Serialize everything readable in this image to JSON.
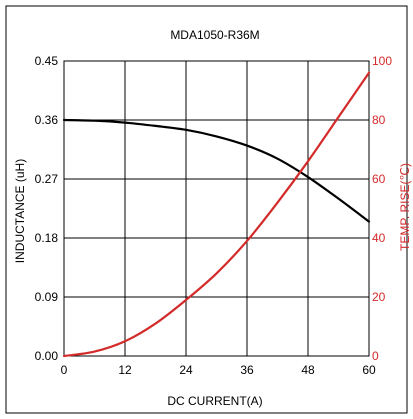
{
  "chart_data": {
    "type": "line",
    "title": "MDA1050-R36M",
    "xlabel": "DC CURRENT(A)",
    "ylabel": "INDUCTANCE (uH)",
    "y2label": "TEMP. RISE(℃)",
    "xlim": [
      0,
      60
    ],
    "ylim": [
      0,
      0.45
    ],
    "y2lim": [
      0,
      100
    ],
    "xticks": [
      "0",
      "12",
      "24",
      "36",
      "48",
      "60"
    ],
    "yticks": [
      "0.00",
      "0.09",
      "0.18",
      "0.27",
      "0.36",
      "0.45"
    ],
    "y2ticks": [
      "0",
      "20",
      "40",
      "60",
      "80",
      "100"
    ],
    "grid": true,
    "series": [
      {
        "axis": "left",
        "color": "#000000",
        "x": [
          0,
          6,
          12,
          18,
          24,
          30,
          36,
          42,
          48,
          54,
          60
        ],
        "y": [
          0.36,
          0.359,
          0.356,
          0.351,
          0.345,
          0.335,
          0.321,
          0.301,
          0.273,
          0.24,
          0.205
        ]
      },
      {
        "axis": "right",
        "color": "#d32a2a",
        "x": [
          0,
          6,
          12,
          18,
          24,
          30,
          36,
          42,
          48,
          54,
          60
        ],
        "y": [
          0,
          1.5,
          5,
          11,
          19,
          28,
          39,
          52,
          66,
          81,
          96
        ]
      }
    ]
  }
}
